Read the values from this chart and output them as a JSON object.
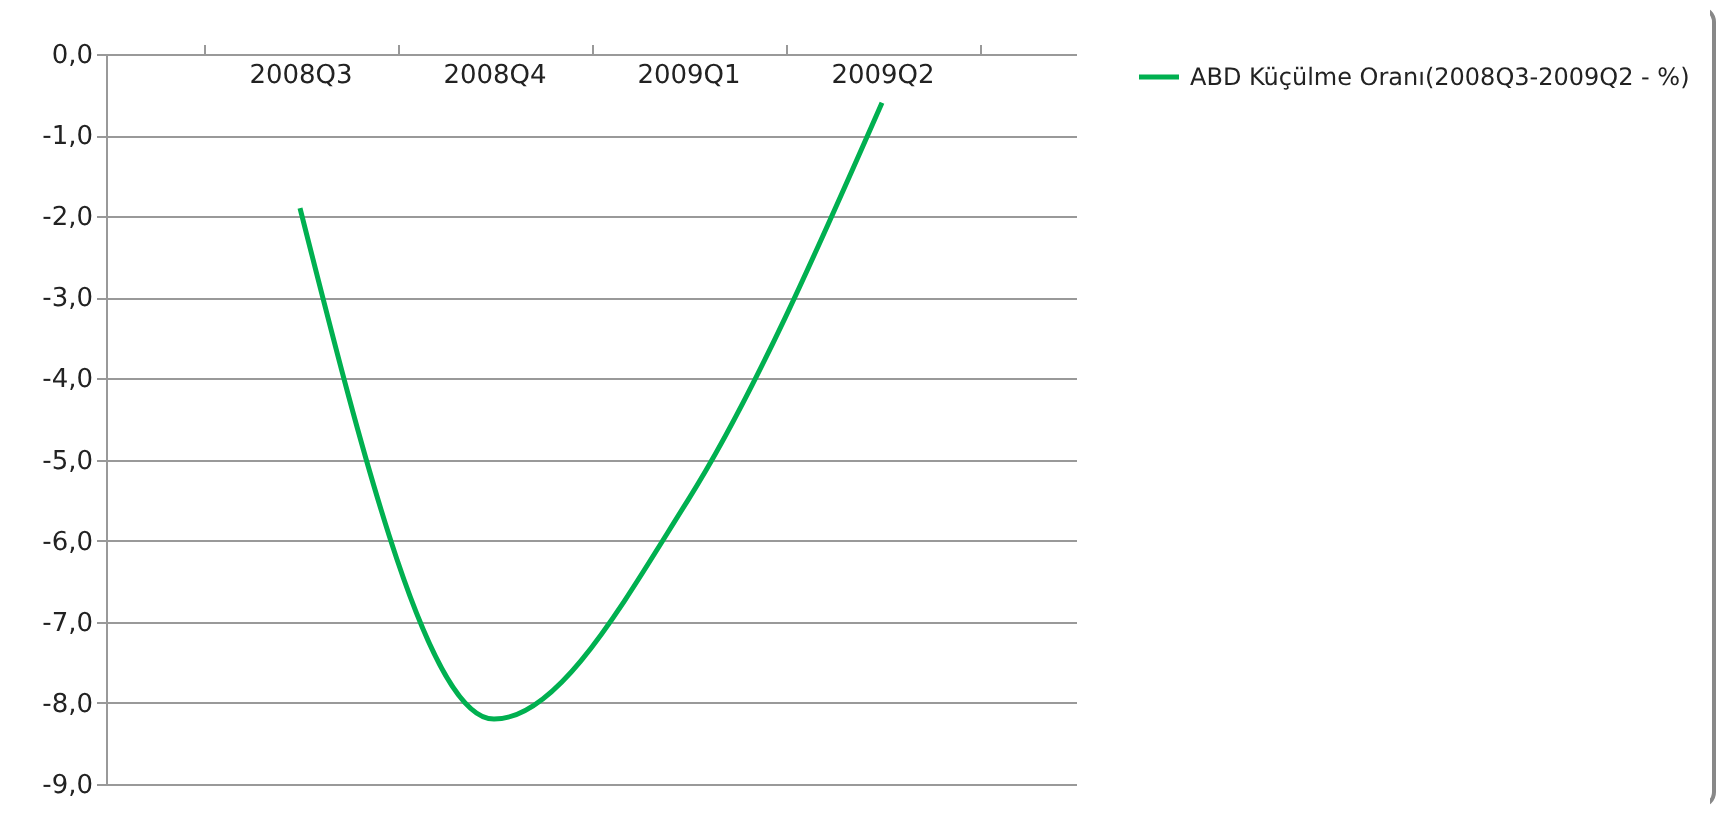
{
  "chart_data": {
    "type": "line",
    "categories": [
      "2008Q3",
      "2008Q4",
      "2009Q1",
      "2009Q2"
    ],
    "series": [
      {
        "name": "ABD Küçülme Oranı(2008Q3-2009Q2 - %)",
        "color": "#00b050",
        "values": [
          -1.9,
          -8.2,
          -5.5,
          -0.6
        ]
      }
    ],
    "ylim": [
      -9,
      0
    ],
    "yticks": [
      {
        "value": 0,
        "label": "0,0"
      },
      {
        "value": -1,
        "label": "-1,0"
      },
      {
        "value": -2,
        "label": "-2,0"
      },
      {
        "value": -3,
        "label": "-3,0"
      },
      {
        "value": -4,
        "label": "-4,0"
      },
      {
        "value": -5,
        "label": "-5,0"
      },
      {
        "value": -6,
        "label": "-6,0"
      },
      {
        "value": -7,
        "label": "-7,0"
      },
      {
        "value": -8,
        "label": "-8,0"
      },
      {
        "value": -9,
        "label": "-9,0"
      }
    ],
    "grid": "y",
    "legend": "right",
    "marker": "none",
    "line_style": "solid"
  }
}
